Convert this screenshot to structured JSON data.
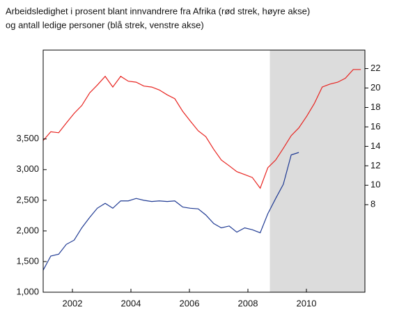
{
  "chart_data": {
    "type": "line",
    "title": "Arbeidsledighet i prosent blant innvandrere fra Afrika (rød strek, høyre akse)",
    "subtitle": "og antall ledige personer (blå strek, venstre akse)",
    "x": [
      2001.0,
      2001.26,
      2001.53,
      2001.79,
      2002.06,
      2002.32,
      2002.59,
      2002.85,
      2003.12,
      2003.38,
      2003.65,
      2003.91,
      2004.18,
      2004.44,
      2004.71,
      2004.97,
      2005.24,
      2005.5,
      2005.77,
      2006.03,
      2006.3,
      2006.56,
      2006.83,
      2007.09,
      2007.36,
      2007.62,
      2007.89,
      2008.15,
      2008.42,
      2008.68,
      2008.95,
      2009.21,
      2009.48,
      2009.74,
      2010.01,
      2010.27,
      2010.54,
      2010.8,
      2011.07,
      2011.33,
      2011.6,
      2011.86
    ],
    "series": [
      {
        "color": "#1f3a93",
        "values": [
          1360,
          1590,
          1620,
          1780,
          1850,
          2050,
          2220,
          2370,
          2450,
          2370,
          2490,
          2490,
          2530,
          2500,
          2480,
          2490,
          2480,
          2490,
          2390,
          2370,
          2360,
          2260,
          2120,
          2050,
          2080,
          1980,
          2050,
          2020,
          1970,
          2280,
          2530,
          2760,
          3240,
          3280,
          null,
          null,
          null,
          null,
          null,
          null,
          null,
          null
        ]
      },
      {
        "color": "#e8231f",
        "axis": "y2",
        "values": [
          14.6,
          15.5,
          15.4,
          16.4,
          17.4,
          18.2,
          19.5,
          20.3,
          21.2,
          20.1,
          21.2,
          20.7,
          20.6,
          20.2,
          20.1,
          19.8,
          19.3,
          18.9,
          17.6,
          16.6,
          15.6,
          15.0,
          13.7,
          12.6,
          12.0,
          11.4,
          11.1,
          10.8,
          9.7,
          11.8,
          12.6,
          13.8,
          15.1,
          15.9,
          17.1,
          18.4,
          20.1,
          20.4,
          20.6,
          21.0,
          21.9,
          21.9
        ]
      }
    ],
    "xlim": [
      2001,
      2012
    ],
    "xticks": [
      2002,
      2004,
      2006,
      2008,
      2010
    ],
    "ylim": [
      1000,
      4950
    ],
    "yticks": [
      {
        "value": 1000,
        "label": "1,000"
      },
      {
        "value": 1500,
        "label": "1,500"
      },
      {
        "value": 2000,
        "label": "2,000"
      },
      {
        "value": 2500,
        "label": "2,500"
      },
      {
        "value": 3000,
        "label": "3,000"
      },
      {
        "value": 3500,
        "label": "3,500"
      }
    ],
    "y2lim": [
      -1,
      23.9
    ],
    "y2ticks": [
      8,
      10,
      12,
      14,
      16,
      18,
      20,
      22
    ],
    "shaded_region": [
      2008.75,
      2012
    ],
    "shade_color": "#dcdcdc",
    "grid": false
  }
}
